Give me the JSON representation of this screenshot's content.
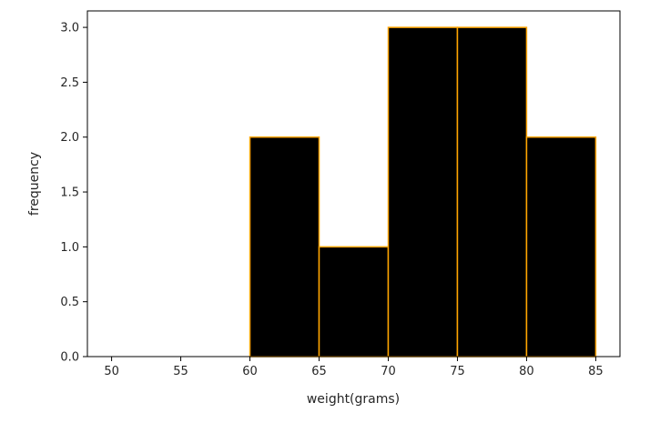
{
  "chart_data": {
    "type": "bar",
    "subtype": "histogram",
    "bins": [
      {
        "x0": 60,
        "x1": 65,
        "count": 2
      },
      {
        "x0": 65,
        "x1": 70,
        "count": 1
      },
      {
        "x0": 70,
        "x1": 75,
        "count": 3
      },
      {
        "x0": 75,
        "x1": 80,
        "count": 3
      },
      {
        "x0": 80,
        "x1": 85,
        "count": 2
      }
    ],
    "xlabel": "weight(grams)",
    "ylabel": "frequency",
    "xlim": [
      48.25,
      86.75
    ],
    "ylim": [
      0,
      3.15
    ],
    "xticks": [
      "50",
      "55",
      "60",
      "65",
      "70",
      "75",
      "80",
      "85"
    ],
    "yticks": [
      "0.0",
      "0.5",
      "1.0",
      "1.5",
      "2.0",
      "2.5",
      "3.0"
    ],
    "bar_fill_color": "#000000",
    "bar_edge_color": "#ffa500",
    "grid": false
  }
}
